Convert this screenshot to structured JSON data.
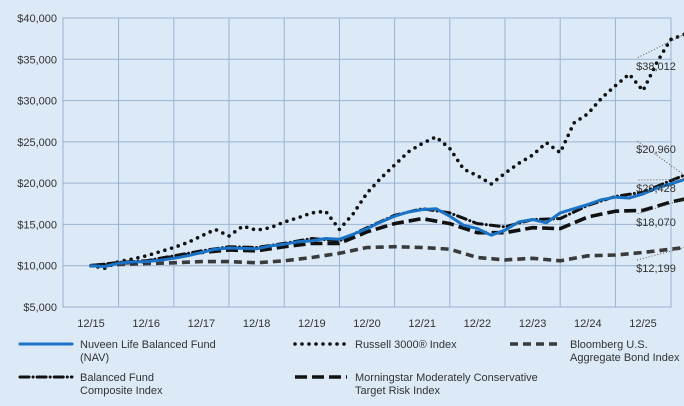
{
  "chart_data": {
    "type": "line",
    "title": "",
    "xlabel": "",
    "ylabel": "",
    "x_ticks": [
      "12/15",
      "12/16",
      "12/17",
      "12/18",
      "12/19",
      "12/20",
      "12/21",
      "12/22",
      "12/23",
      "12/24",
      "12/25"
    ],
    "ylim": [
      5000,
      40000
    ],
    "y_ticks": [
      5000,
      10000,
      15000,
      20000,
      25000,
      30000,
      35000,
      40000
    ],
    "y_tick_labels": [
      "$5,000",
      "$10,000",
      "$15,000",
      "$20,000",
      "$25,000",
      "$30,000",
      "$35,000",
      "$40,000"
    ],
    "grid": true,
    "legend_position": "bottom",
    "series": [
      {
        "name": "Nuveen Life Balanced Fund\n(NAV)",
        "style": "solid",
        "color": "#1a73c6",
        "end_label": "$20,428",
        "points": [
          [
            0,
            10000
          ],
          [
            0.25,
            9900
          ],
          [
            0.5,
            10300
          ],
          [
            0.75,
            10450
          ],
          [
            1.0,
            10500
          ],
          [
            1.25,
            10650
          ],
          [
            1.5,
            10900
          ],
          [
            1.75,
            11200
          ],
          [
            2.0,
            11600
          ],
          [
            2.25,
            12000
          ],
          [
            2.5,
            12150
          ],
          [
            2.75,
            12100
          ],
          [
            3.0,
            12050
          ],
          [
            3.25,
            12400
          ],
          [
            3.5,
            12600
          ],
          [
            3.75,
            12900
          ],
          [
            4.0,
            13000
          ],
          [
            4.25,
            13300
          ],
          [
            4.5,
            13200
          ],
          [
            4.75,
            13800
          ],
          [
            5.0,
            14500
          ],
          [
            5.25,
            15300
          ],
          [
            5.5,
            16000
          ],
          [
            5.75,
            16500
          ],
          [
            6.0,
            16800
          ],
          [
            6.25,
            16900
          ],
          [
            6.5,
            16000
          ],
          [
            6.75,
            14900
          ],
          [
            7.0,
            14500
          ],
          [
            7.25,
            13700
          ],
          [
            7.5,
            14300
          ],
          [
            7.75,
            15300
          ],
          [
            8.0,
            15600
          ],
          [
            8.25,
            15200
          ],
          [
            8.5,
            16400
          ],
          [
            8.75,
            16900
          ],
          [
            9.0,
            17400
          ],
          [
            9.25,
            18000
          ],
          [
            9.5,
            18300
          ],
          [
            9.75,
            18200
          ],
          [
            10.0,
            18700
          ],
          [
            10.25,
            19400
          ],
          [
            10.5,
            19900
          ],
          [
            10.75,
            20428
          ]
        ]
      },
      {
        "name": "Russell 3000® Index",
        "style": "dotted",
        "color": "#111111",
        "end_label": "$38,012",
        "points": [
          [
            0,
            10000
          ],
          [
            0.25,
            9700
          ],
          [
            0.5,
            10500
          ],
          [
            0.75,
            10800
          ],
          [
            1.0,
            11200
          ],
          [
            1.25,
            11700
          ],
          [
            1.5,
            12200
          ],
          [
            1.75,
            12800
          ],
          [
            2.0,
            13600
          ],
          [
            2.25,
            14400
          ],
          [
            2.5,
            13600
          ],
          [
            2.75,
            14800
          ],
          [
            3.0,
            14300
          ],
          [
            3.25,
            14600
          ],
          [
            3.5,
            15300
          ],
          [
            3.75,
            15800
          ],
          [
            4.0,
            16400
          ],
          [
            4.25,
            16600
          ],
          [
            4.5,
            14400
          ],
          [
            4.75,
            16300
          ],
          [
            5.0,
            18800
          ],
          [
            5.25,
            20600
          ],
          [
            5.5,
            22200
          ],
          [
            5.75,
            23800
          ],
          [
            6.0,
            24800
          ],
          [
            6.25,
            25600
          ],
          [
            6.5,
            24200
          ],
          [
            6.75,
            21700
          ],
          [
            7.0,
            20900
          ],
          [
            7.25,
            19900
          ],
          [
            7.5,
            21200
          ],
          [
            7.75,
            22400
          ],
          [
            8.0,
            23400
          ],
          [
            8.25,
            24900
          ],
          [
            8.5,
            23700
          ],
          [
            8.75,
            27300
          ],
          [
            9.0,
            28400
          ],
          [
            9.25,
            30300
          ],
          [
            9.5,
            31800
          ],
          [
            9.75,
            33200
          ],
          [
            10.0,
            31200
          ],
          [
            10.25,
            34600
          ],
          [
            10.5,
            37400
          ],
          [
            10.75,
            38012
          ]
        ]
      },
      {
        "name": "Bloomberg U.S.\nAggregate Bond Index",
        "style": "dashed",
        "color": "#3a3a3a",
        "end_label": "$12,199",
        "points": [
          [
            0,
            10000
          ],
          [
            0.5,
            10150
          ],
          [
            1.0,
            10250
          ],
          [
            1.5,
            10350
          ],
          [
            2.0,
            10500
          ],
          [
            2.5,
            10500
          ],
          [
            3.0,
            10350
          ],
          [
            3.5,
            10600
          ],
          [
            4.0,
            11000
          ],
          [
            4.5,
            11500
          ],
          [
            5.0,
            12200
          ],
          [
            5.5,
            12300
          ],
          [
            6.0,
            12200
          ],
          [
            6.5,
            12000
          ],
          [
            7.0,
            11000
          ],
          [
            7.5,
            10700
          ],
          [
            8.0,
            10900
          ],
          [
            8.5,
            10600
          ],
          [
            9.0,
            11200
          ],
          [
            9.5,
            11300
          ],
          [
            10.0,
            11600
          ],
          [
            10.5,
            12000
          ],
          [
            10.75,
            12199
          ]
        ]
      },
      {
        "name": "Balanced Fund\nComposite Index",
        "style": "dashdot",
        "color": "#111111",
        "end_label": "$20,960",
        "points": [
          [
            0,
            10000
          ],
          [
            0.5,
            10400
          ],
          [
            1.0,
            10600
          ],
          [
            1.5,
            11200
          ],
          [
            2.0,
            11800
          ],
          [
            2.5,
            12300
          ],
          [
            3.0,
            12200
          ],
          [
            3.5,
            12700
          ],
          [
            4.0,
            13300
          ],
          [
            4.5,
            13000
          ],
          [
            5.0,
            14600
          ],
          [
            5.5,
            16100
          ],
          [
            6.0,
            16900
          ],
          [
            6.5,
            16400
          ],
          [
            7.0,
            15100
          ],
          [
            7.5,
            14700
          ],
          [
            8.0,
            15600
          ],
          [
            8.5,
            15700
          ],
          [
            9.0,
            17300
          ],
          [
            9.5,
            18400
          ],
          [
            10.0,
            18900
          ],
          [
            10.5,
            20300
          ],
          [
            10.75,
            20960
          ]
        ]
      },
      {
        "name": "Morningstar Moderately Conservative\nTarget Risk Index",
        "style": "longdash",
        "color": "#111111",
        "end_label": "$18,070",
        "points": [
          [
            0,
            10000
          ],
          [
            0.5,
            10300
          ],
          [
            1.0,
            10500
          ],
          [
            1.5,
            11100
          ],
          [
            2.0,
            11600
          ],
          [
            2.5,
            11900
          ],
          [
            3.0,
            11800
          ],
          [
            3.5,
            12300
          ],
          [
            4.0,
            12700
          ],
          [
            4.5,
            12700
          ],
          [
            5.0,
            14100
          ],
          [
            5.5,
            15100
          ],
          [
            6.0,
            15700
          ],
          [
            6.5,
            15100
          ],
          [
            7.0,
            14000
          ],
          [
            7.5,
            14000
          ],
          [
            8.0,
            14600
          ],
          [
            8.5,
            14500
          ],
          [
            9.0,
            15900
          ],
          [
            9.5,
            16600
          ],
          [
            10.0,
            16700
          ],
          [
            10.5,
            17700
          ],
          [
            10.75,
            18070
          ]
        ]
      }
    ]
  }
}
